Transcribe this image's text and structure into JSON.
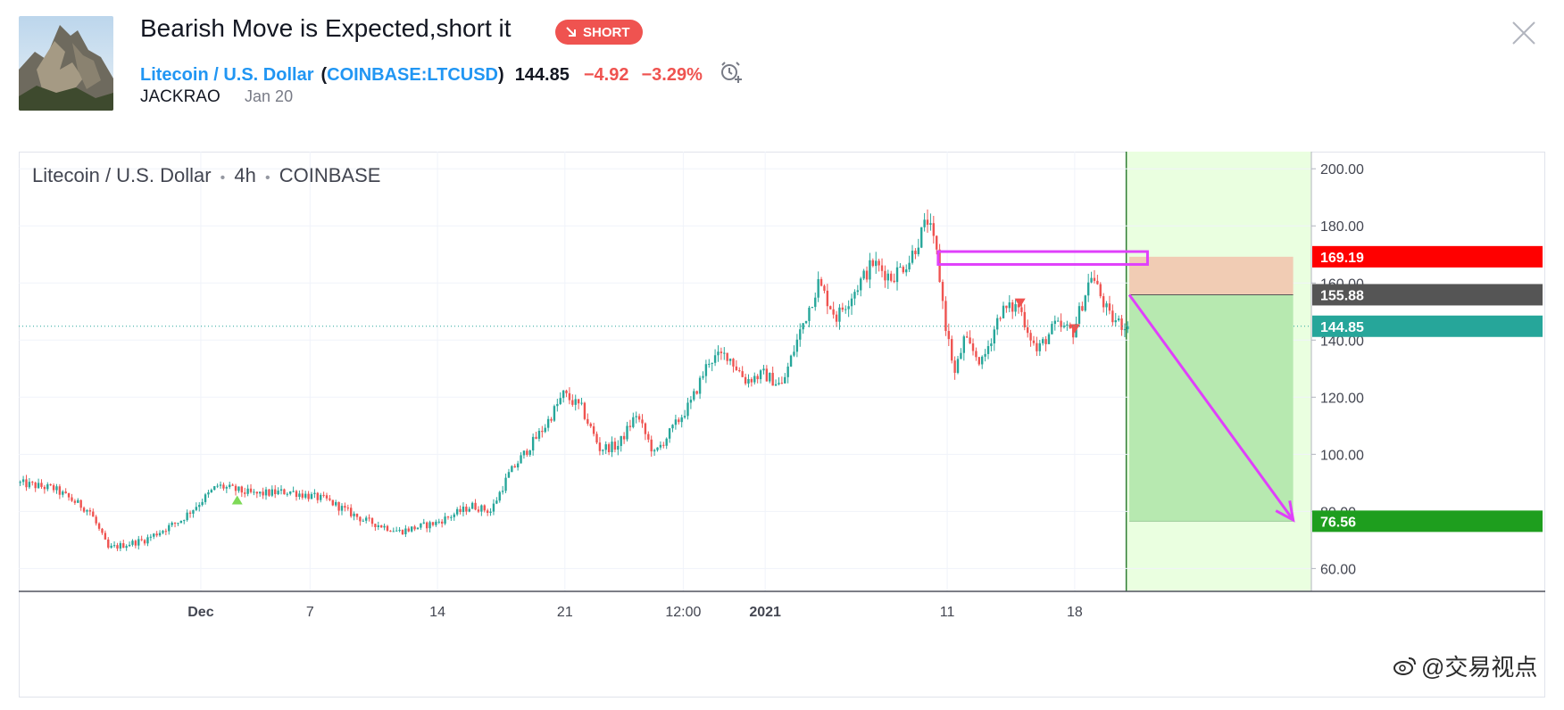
{
  "idea": {
    "title": "Bearish Move is Expected,short it",
    "badge": "SHORT",
    "symbol_name": "Litecoin / U.S. Dollar",
    "paren_open": "(",
    "symbol_code": "COINBASE:LTCUSD",
    "paren_close": ")",
    "price": "144.85",
    "change": "−4.92",
    "change_pct": "−3.29%",
    "author": "JACKRAO",
    "date": "Jan 20"
  },
  "colors": {
    "up": "#26a69a",
    "down": "#ef5350",
    "target_zone": "#b7e9b0",
    "stop_zone": "#f1ccb4",
    "projection_bg": "#eaffe0",
    "annotation": "#e040fb",
    "stop_label": "#ff0000",
    "entry_label": "#555555",
    "last_label": "#26a69a",
    "target_label": "#1e9e1e"
  },
  "legend": {
    "symbol": "Litecoin / U.S. Dollar",
    "interval": "4h",
    "exchange": "COINBASE"
  },
  "chart_data": {
    "type": "candlestick",
    "ylim": [
      52,
      206
    ],
    "y_ticks": [
      200,
      180,
      160,
      140,
      120,
      100,
      80,
      60
    ],
    "y_tick_labels": [
      "200.00",
      "180.00",
      "160.00",
      "140.00",
      "120.00",
      "100.00",
      "80.00",
      "60.00"
    ],
    "x_tick_labels": [
      {
        "label": "Dec",
        "date": "2020-12-01"
      },
      {
        "label": "7",
        "date": "2020-12-07"
      },
      {
        "label": "14",
        "date": "2020-12-14"
      },
      {
        "label": "21",
        "date": "2020-12-21"
      },
      {
        "label": "12:00",
        "date": "2020-12-27T12:00"
      },
      {
        "label": "2021",
        "date": "2021-01-01"
      },
      {
        "label": "11",
        "date": "2021-01-11"
      },
      {
        "label": "18",
        "date": "2021-01-18"
      }
    ],
    "x_range": [
      "2020-11-21",
      "2021-01-31"
    ],
    "last_candle": "2021-01-20T20:00",
    "close_path": [
      [
        "2020-11-21",
        90
      ],
      [
        "2020-11-23",
        88
      ],
      [
        "2020-11-25",
        80
      ],
      [
        "2020-11-26",
        67
      ],
      [
        "2020-11-28",
        70
      ],
      [
        "2020-11-30",
        77
      ],
      [
        "2020-12-02",
        89
      ],
      [
        "2020-12-04",
        86
      ],
      [
        "2020-12-06",
        87
      ],
      [
        "2020-12-08",
        84
      ],
      [
        "2020-12-10",
        77
      ],
      [
        "2020-12-12",
        73
      ],
      [
        "2020-12-14",
        76
      ],
      [
        "2020-12-16",
        82
      ],
      [
        "2020-12-17",
        80
      ],
      [
        "2020-12-18",
        93
      ],
      [
        "2020-12-20",
        110
      ],
      [
        "2020-12-21",
        121
      ],
      [
        "2020-12-22",
        116
      ],
      [
        "2020-12-23",
        102
      ],
      [
        "2020-12-24",
        103
      ],
      [
        "2020-12-25",
        114
      ],
      [
        "2020-12-26",
        100
      ],
      [
        "2020-12-28",
        118
      ],
      [
        "2020-12-29",
        133
      ],
      [
        "2020-12-30",
        135
      ],
      [
        "2020-12-31",
        126
      ],
      [
        "2021-01-01",
        128
      ],
      [
        "2021-01-02",
        124
      ],
      [
        "2021-01-03",
        143
      ],
      [
        "2021-01-04",
        160
      ],
      [
        "2021-01-05",
        148
      ],
      [
        "2021-01-07",
        167
      ],
      [
        "2021-01-08",
        162
      ],
      [
        "2021-01-09",
        168
      ],
      [
        "2021-01-10",
        182
      ],
      [
        "2021-01-10T12:00",
        170
      ],
      [
        "2021-01-11",
        145
      ],
      [
        "2021-01-11T12:00",
        128
      ],
      [
        "2021-01-12",
        140
      ],
      [
        "2021-01-13",
        132
      ],
      [
        "2021-01-14",
        150
      ],
      [
        "2021-01-15",
        152
      ],
      [
        "2021-01-16",
        136
      ],
      [
        "2021-01-17",
        145
      ],
      [
        "2021-01-18",
        143
      ],
      [
        "2021-01-19",
        163
      ],
      [
        "2021-01-20",
        148
      ],
      [
        "2021-01-20T20:00",
        144.85
      ]
    ],
    "markers": [
      {
        "date": "2020-12-03",
        "price": 84,
        "direction": "up"
      },
      {
        "date": "2021-01-15",
        "price": 153,
        "direction": "down"
      },
      {
        "date": "2021-01-18",
        "price": 144,
        "direction": "down"
      }
    ],
    "resistance_box": {
      "start": "2021-01-10T12:00",
      "end": "2021-01-22",
      "top": 171,
      "bottom": 166.5
    },
    "position": {
      "start": "2021-01-21",
      "end": "2021-01-30",
      "stop": 169.19,
      "entry": 155.88,
      "target": 76.56,
      "last": 144.85
    },
    "projection_start": "2021-01-20T20:00",
    "projection_arrow": {
      "from": [
        "2021-01-21",
        155.88
      ],
      "to": [
        "2021-01-30",
        77
      ]
    },
    "price_labels": {
      "stop": "169.19",
      "entry": "155.88",
      "last": "144.85",
      "target": "76.56"
    }
  },
  "watermark": "@交易视点"
}
